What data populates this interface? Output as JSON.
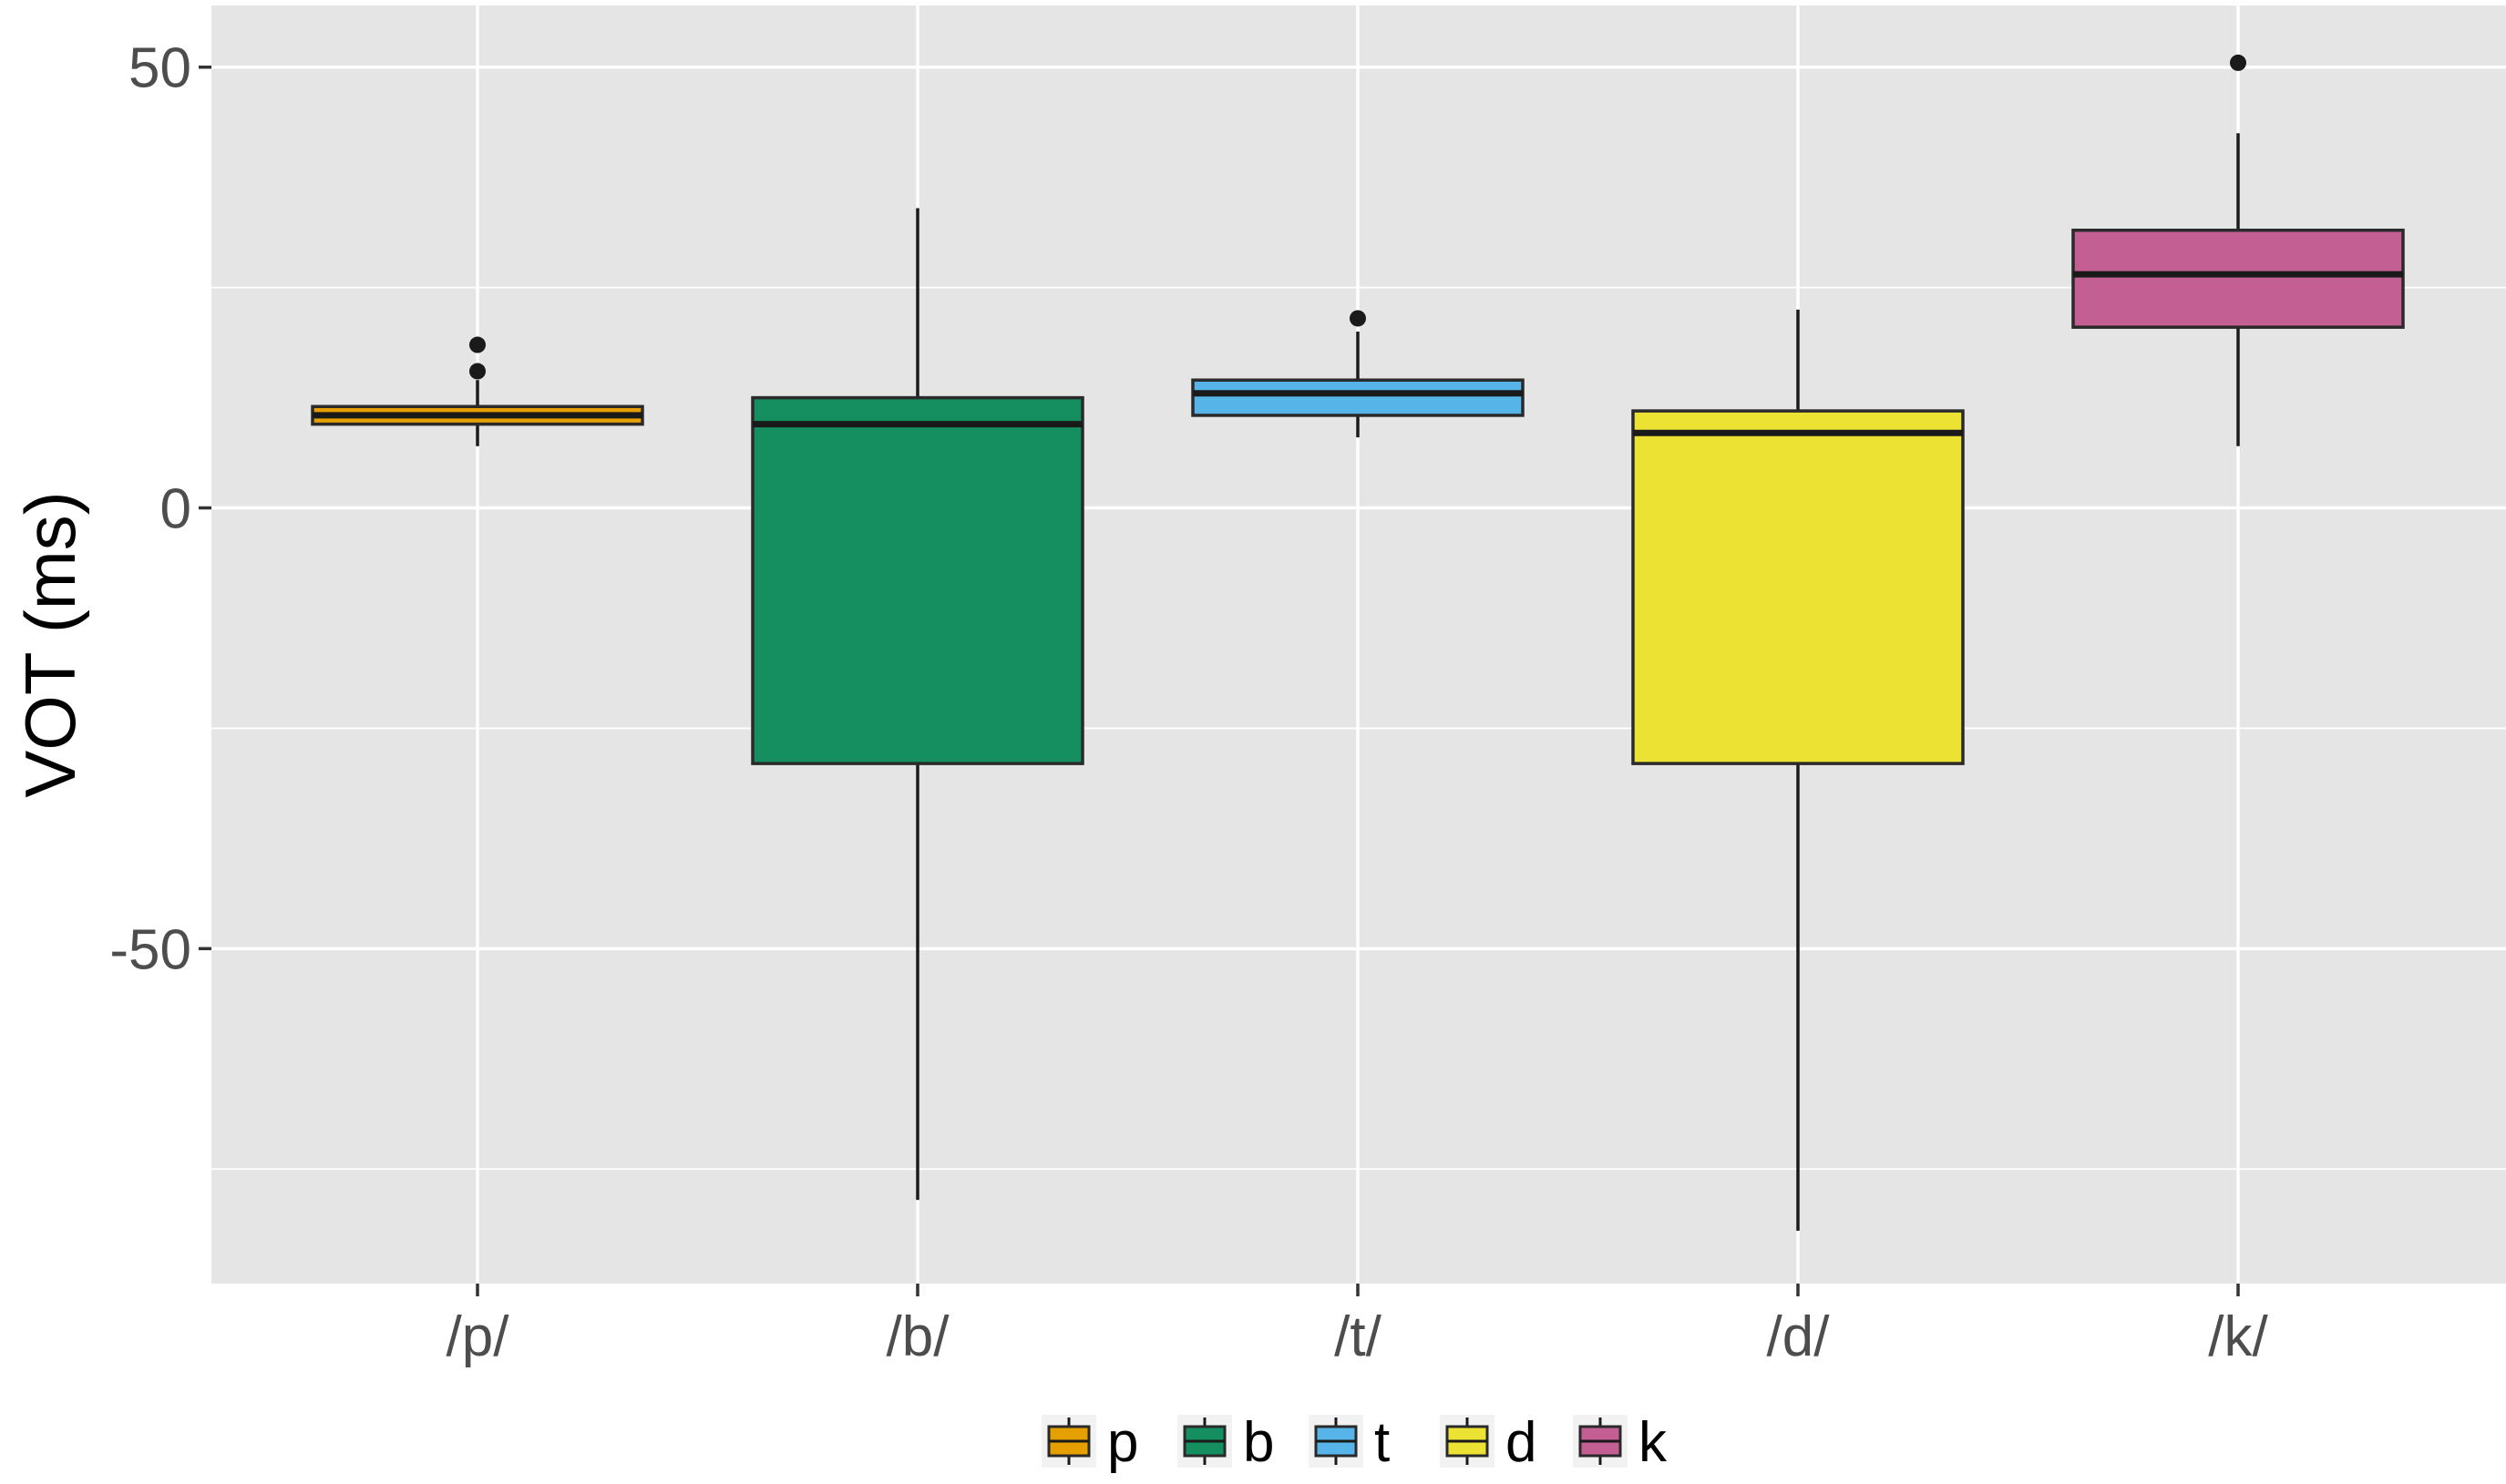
{
  "chart_data": {
    "type": "boxplot",
    "title": "",
    "xlabel": "",
    "ylabel": "VOT (ms)",
    "ylim": [
      -88,
      57
    ],
    "y_ticks": [
      50,
      0,
      -50
    ],
    "y_tick_labels": [
      "50",
      "0",
      "-50"
    ],
    "grid": true,
    "panel_background": "#e5e5e5",
    "grid_color": "#ffffff",
    "categories": [
      "/p/",
      "/b/",
      "/t/",
      "/d/",
      "/k/"
    ],
    "boxes": [
      {
        "category": "/p/",
        "series": "p",
        "color": "#e69f00",
        "whisker_low": 7,
        "q1": 9.5,
        "median": 10.5,
        "q3": 11.5,
        "whisker_high": 14.5,
        "outliers": [
          15.5,
          18.5
        ]
      },
      {
        "category": "/b/",
        "series": "b",
        "color": "#168f60",
        "whisker_low": -78.5,
        "q1": -29,
        "median": 9.5,
        "q3": 12.5,
        "whisker_high": 34,
        "outliers": []
      },
      {
        "category": "/t/",
        "series": "t",
        "color": "#56b4e9",
        "whisker_low": 8,
        "q1": 10.5,
        "median": 13,
        "q3": 14.5,
        "whisker_high": 20,
        "outliers": [
          21.5
        ]
      },
      {
        "category": "/d/",
        "series": "d",
        "color": "#ece234",
        "whisker_low": -82,
        "q1": -29,
        "median": 8.5,
        "q3": 11,
        "whisker_high": 22.5,
        "outliers": []
      },
      {
        "category": "/k/",
        "series": "k",
        "color": "#c35f93",
        "whisker_low": 7,
        "q1": 20.5,
        "median": 26.5,
        "q3": 31.5,
        "whisker_high": 42.5,
        "outliers": [
          50.5
        ]
      }
    ],
    "legend": {
      "position": "bottom",
      "items": [
        {
          "label": "p",
          "color": "#e69f00"
        },
        {
          "label": "b",
          "color": "#168f60"
        },
        {
          "label": "t",
          "color": "#56b4e9"
        },
        {
          "label": "d",
          "color": "#ece234"
        },
        {
          "label": "k",
          "color": "#c35f93"
        }
      ]
    }
  }
}
